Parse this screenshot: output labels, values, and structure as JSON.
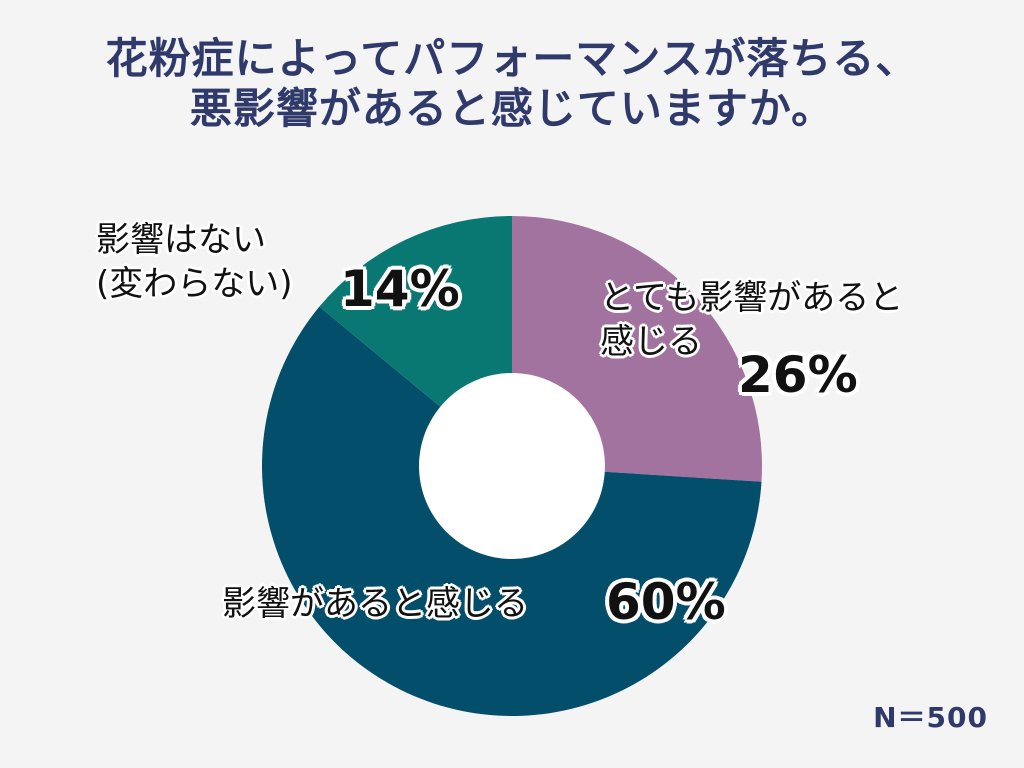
{
  "title_line1": "花粉症によってパフォーマンスが落ちる、",
  "title_line2": "悪影響があると感じていますか。",
  "sample_size": "N＝500",
  "chart_data": {
    "type": "pie",
    "style": "donut",
    "title": "花粉症によってパフォーマンスが落ちる、悪影響があると感じていますか。",
    "unit": "%",
    "slices": [
      {
        "label_line1": "とても影響があると",
        "label_line2": "感じる",
        "value": 26,
        "percent_text": "26%",
        "color": "#a3739f"
      },
      {
        "label_line1": "影響があると感じる",
        "value": 60,
        "percent_text": "60%",
        "color": "#034e6b"
      },
      {
        "label_line1": "影響はない",
        "label_line2": "(変わらない)",
        "value": 14,
        "percent_text": "14%",
        "color": "#097872"
      }
    ]
  }
}
